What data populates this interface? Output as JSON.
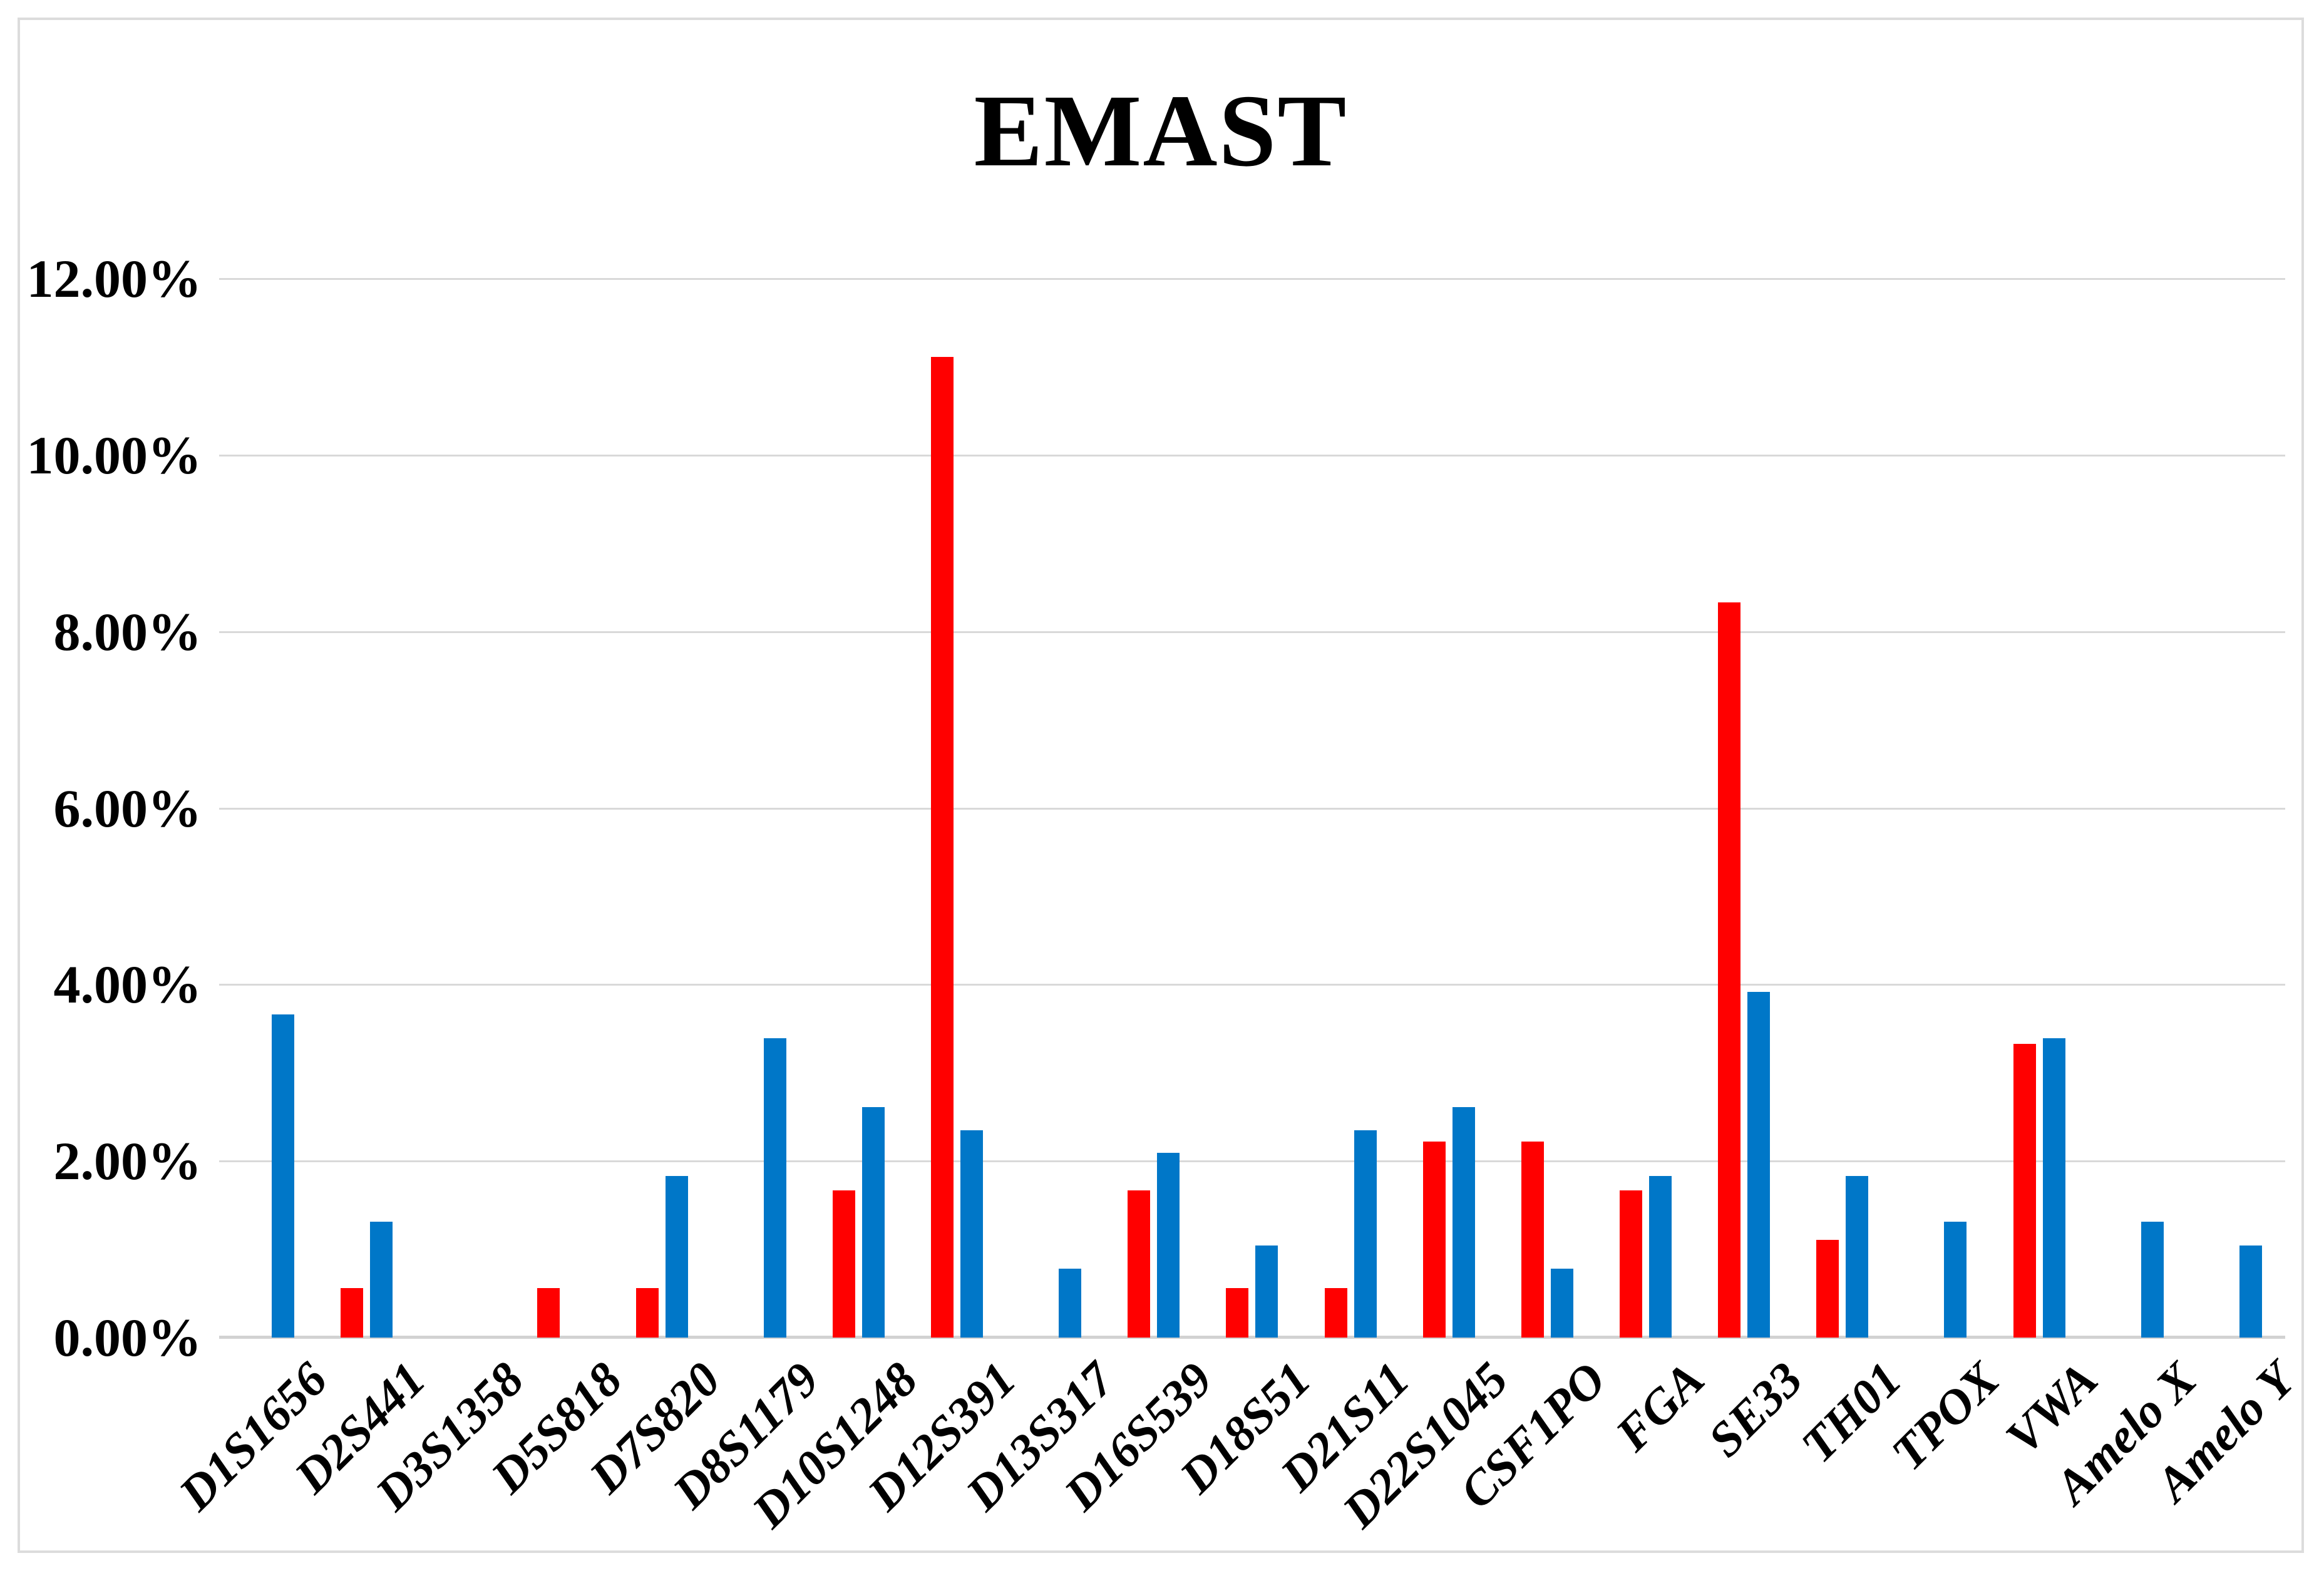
{
  "title": "EMAST",
  "colors": {
    "series_red": "#FF0000",
    "series_blue": "#0077C8",
    "gridline": "#D9D9D9",
    "axis_baseline": "#D2D2D2",
    "frame_border": "#DCDCDC",
    "text": "#000000",
    "background": "#FFFFFF"
  },
  "chart_data": {
    "type": "bar",
    "title": "EMAST",
    "xlabel": "",
    "ylabel": "",
    "ylim": [
      0,
      12
    ],
    "ytick_step_percent": 2,
    "ytick_labels": [
      "0.00%",
      "2.00%",
      "4.00%",
      "6.00%",
      "8.00%",
      "10.00%",
      "12.00%"
    ],
    "grid": true,
    "legend": "none",
    "categories": [
      "D1S1656",
      "D2S441",
      "D3S1358",
      "D5S818",
      "D7S820",
      "D8S1179",
      "D10S1248",
      "D12S391",
      "D13S317",
      "D16S539",
      "D18S51",
      "D21S11",
      "D22S1045",
      "CSF1PO",
      "FGA",
      "SE33",
      "TH01",
      "TPOX",
      "VWA",
      "Amelo X",
      "Amelo Y"
    ],
    "series": [
      {
        "name": "red",
        "color": "#FF0000",
        "values_percent": [
          0,
          0.56,
          0,
          0.56,
          0.56,
          0,
          1.67,
          11.11,
          0,
          1.67,
          0.56,
          0.56,
          2.22,
          2.22,
          1.67,
          8.33,
          1.11,
          0,
          3.33,
          0,
          0
        ]
      },
      {
        "name": "blue",
        "color": "#0077C8",
        "values_percent": [
          3.66,
          1.31,
          0,
          0,
          1.83,
          3.39,
          2.61,
          2.35,
          0.78,
          2.09,
          1.04,
          2.35,
          2.61,
          0.78,
          1.83,
          3.92,
          1.83,
          1.31,
          3.39,
          1.31,
          1.04
        ]
      }
    ]
  }
}
